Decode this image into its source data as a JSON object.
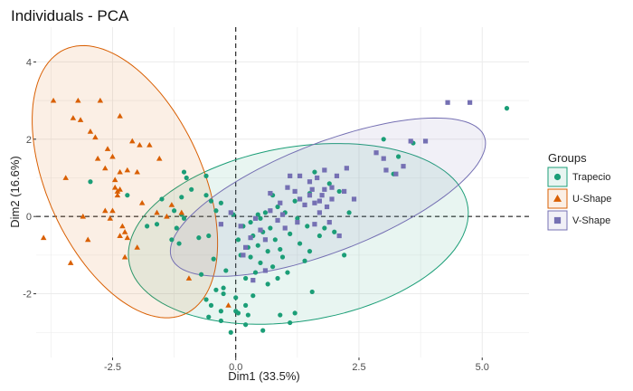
{
  "chart_data": {
    "type": "scatter",
    "title": "Individuals - PCA",
    "xlabel": "Dim1 (33.5%)",
    "ylabel": "Dim2 (16.6%)",
    "xlim": [
      -4.05,
      5.95
    ],
    "ylim": [
      -3.65,
      4.9
    ],
    "x_ticks": [
      -2.5,
      0,
      2.5,
      5
    ],
    "x_tick_labels": [
      "-2.5",
      "0.0",
      "2.5",
      "5.0"
    ],
    "y_ticks": [
      -2,
      0,
      2,
      4
    ],
    "y_tick_labels": [
      "-2",
      "0",
      "2",
      "4"
    ],
    "grid": true,
    "reference_lines": {
      "x": 0,
      "y": 0,
      "style": "dashed"
    },
    "legend": {
      "title": "Groups",
      "placement": "right"
    },
    "series": [
      {
        "name": "Trapecio",
        "color": "#1b9e77",
        "marker": "circle",
        "ellipse": {
          "cx": 1.27,
          "cy": -0.45,
          "rx": 3.52,
          "ry": 2.23,
          "angle_deg": 15
        },
        "points": [
          [
            5.5,
            2.8
          ],
          [
            3.3,
            1.55
          ],
          [
            3.2,
            1.1
          ],
          [
            3.6,
            1.9
          ],
          [
            3.0,
            2.0
          ],
          [
            -2.95,
            0.9
          ],
          [
            -1.0,
            1.0
          ],
          [
            -1.1,
            0.5
          ],
          [
            -0.9,
            0.7
          ],
          [
            -0.6,
            0.55
          ],
          [
            -0.5,
            0.4
          ],
          [
            -0.6,
            1.05
          ],
          [
            -1.5,
            0.45
          ],
          [
            -1.1,
            0.05
          ],
          [
            -1.6,
            -0.2
          ],
          [
            -1.2,
            -0.3
          ],
          [
            -1.3,
            -0.6
          ],
          [
            -1.15,
            -0.7
          ],
          [
            -0.55,
            -0.5
          ],
          [
            -0.75,
            -0.55
          ],
          [
            -0.45,
            -1.1
          ],
          [
            -0.2,
            -1.4
          ],
          [
            -0.25,
            -2.0
          ],
          [
            -0.4,
            -1.9
          ],
          [
            -0.5,
            -2.3
          ],
          [
            -0.6,
            -2.15
          ],
          [
            -0.55,
            -2.6
          ],
          [
            -0.3,
            -2.45
          ],
          [
            0.3,
            -0.15
          ],
          [
            0.5,
            -0.05
          ],
          [
            0.15,
            -0.25
          ],
          [
            0.35,
            -0.5
          ],
          [
            0.55,
            -0.4
          ],
          [
            0.7,
            -0.3
          ],
          [
            0.8,
            -0.6
          ],
          [
            0.25,
            -0.8
          ],
          [
            0.45,
            -0.75
          ],
          [
            0.65,
            -0.9
          ],
          [
            0.9,
            -0.85
          ],
          [
            0.3,
            -1.05
          ],
          [
            0.5,
            -1.2
          ],
          [
            0.75,
            -1.3
          ],
          [
            0.95,
            -1.05
          ],
          [
            1.1,
            -0.45
          ],
          [
            1.3,
            -0.7
          ],
          [
            1.5,
            -0.9
          ],
          [
            1.4,
            -1.15
          ],
          [
            1.7,
            -0.5
          ],
          [
            2.0,
            -0.4
          ],
          [
            1.8,
            -0.3
          ],
          [
            2.2,
            -1.0
          ],
          [
            0.2,
            -1.6
          ],
          [
            0.4,
            -1.45
          ],
          [
            0.65,
            -1.75
          ],
          [
            0.85,
            -1.6
          ],
          [
            0.2,
            -2.3
          ],
          [
            0.35,
            -2.05
          ],
          [
            0.0,
            -2.1
          ],
          [
            0.05,
            -2.5
          ],
          [
            0.25,
            -2.55
          ],
          [
            -0.3,
            -2.7
          ],
          [
            0.0,
            -2.45
          ],
          [
            0.2,
            -2.8
          ],
          [
            1.2,
            -2.5
          ],
          [
            1.55,
            -1.95
          ],
          [
            1.0,
            0.1
          ],
          [
            1.2,
            0.4
          ],
          [
            1.5,
            0.6
          ],
          [
            1.6,
            1.15
          ],
          [
            1.9,
            0.85
          ],
          [
            2.1,
            0.65
          ],
          [
            2.3,
            0.1
          ],
          [
            -0.05,
            0.05
          ],
          [
            0.05,
            -0.6
          ],
          [
            0.6,
            0.1
          ],
          [
            -2.2,
            0.55
          ],
          [
            -1.8,
            -0.25
          ],
          [
            -1.05,
            -0.05
          ],
          [
            -1.25,
            0.15
          ],
          [
            -1.05,
            1.15
          ],
          [
            -0.4,
            0.15
          ],
          [
            0.9,
            -2.55
          ],
          [
            1.05,
            -1.45
          ],
          [
            -0.1,
            -3.0
          ],
          [
            0.55,
            -2.95
          ],
          [
            1.1,
            -2.75
          ],
          [
            0.1,
            -1.0
          ],
          [
            1.45,
            -0.25
          ],
          [
            -0.3,
            0.35
          ],
          [
            0.85,
            0.25
          ],
          [
            1.25,
            -0.05
          ],
          [
            0.45,
            0.05
          ],
          [
            0.75,
            0.55
          ],
          [
            -0.7,
            -1.5
          ],
          [
            -0.25,
            -1.85
          ]
        ]
      },
      {
        "name": "U-Shape",
        "color": "#d95f02",
        "marker": "triangle",
        "ellipse": {
          "cx": -2.25,
          "cy": 0.9,
          "rx": 3.65,
          "ry": 1.62,
          "angle_deg": -73
        },
        "points": [
          [
            -3.7,
            3.0
          ],
          [
            -3.2,
            3.0
          ],
          [
            -2.75,
            3.0
          ],
          [
            -3.3,
            2.55
          ],
          [
            -3.15,
            2.5
          ],
          [
            -2.95,
            2.2
          ],
          [
            -2.35,
            2.6
          ],
          [
            -2.1,
            1.95
          ],
          [
            -1.95,
            1.85
          ],
          [
            -1.75,
            1.85
          ],
          [
            -1.55,
            1.5
          ],
          [
            -2.6,
            1.75
          ],
          [
            -2.8,
            1.5
          ],
          [
            -2.65,
            1.25
          ],
          [
            -2.35,
            1.15
          ],
          [
            -2.2,
            1.2
          ],
          [
            -2.45,
            0.75
          ],
          [
            -2.4,
            0.65
          ],
          [
            -2.35,
            0.7
          ],
          [
            -2.5,
            0.15
          ],
          [
            -2.65,
            0.15
          ],
          [
            -2.55,
            -0.05
          ],
          [
            -2.3,
            -0.25
          ],
          [
            -2.35,
            -0.5
          ],
          [
            -2.2,
            -0.55
          ],
          [
            -2.0,
            -0.8
          ],
          [
            -2.25,
            -1.05
          ],
          [
            -3.0,
            -0.6
          ],
          [
            -3.9,
            -0.55
          ],
          [
            -3.35,
            -1.2
          ],
          [
            -3.1,
            0.0
          ],
          [
            -3.45,
            1.0
          ],
          [
            -2.4,
            0.55
          ],
          [
            -1.9,
            0.35
          ],
          [
            -1.6,
            0.1
          ],
          [
            -1.4,
            0.0
          ],
          [
            -1.3,
            0.3
          ],
          [
            -2.25,
            -0.4
          ],
          [
            -1.1,
            0.1
          ],
          [
            -0.95,
            -1.6
          ],
          [
            -0.15,
            -2.3
          ],
          [
            -2.85,
            2.05
          ],
          [
            -2.5,
            1.55
          ],
          [
            -2.0,
            1.15
          ],
          [
            -2.45,
            0.95
          ]
        ]
      },
      {
        "name": "V-Shape",
        "color": "#7570b3",
        "marker": "square",
        "ellipse": {
          "cx": 1.87,
          "cy": 0.5,
          "rx": 3.55,
          "ry": 1.35,
          "angle_deg": 28
        },
        "points": [
          [
            4.3,
            2.95
          ],
          [
            3.85,
            1.95
          ],
          [
            3.55,
            1.95
          ],
          [
            3.4,
            1.3
          ],
          [
            3.25,
            1.1
          ],
          [
            3.05,
            1.2
          ],
          [
            2.85,
            1.65
          ],
          [
            2.25,
            1.25
          ],
          [
            2.05,
            1.05
          ],
          [
            1.8,
            1.2
          ],
          [
            1.65,
            1.0
          ],
          [
            1.5,
            0.9
          ],
          [
            1.3,
            1.05
          ],
          [
            1.1,
            1.05
          ],
          [
            1.2,
            0.65
          ],
          [
            1.5,
            0.55
          ],
          [
            1.7,
            0.4
          ],
          [
            1.85,
            0.25
          ],
          [
            1.95,
            0.45
          ],
          [
            2.2,
            0.65
          ],
          [
            1.8,
            0.7
          ],
          [
            1.6,
            0.35
          ],
          [
            1.4,
            0.3
          ],
          [
            0.9,
            0.35
          ],
          [
            0.7,
            0.15
          ],
          [
            0.85,
            -0.1
          ],
          [
            0.5,
            -0.35
          ],
          [
            0.3,
            -0.55
          ],
          [
            0.2,
            -0.8
          ],
          [
            0.15,
            -1.0
          ],
          [
            0.6,
            -0.6
          ],
          [
            1.0,
            -0.3
          ],
          [
            1.25,
            -0.15
          ],
          [
            1.9,
            -0.15
          ],
          [
            1.6,
            -0.2
          ],
          [
            0.95,
            0.05
          ],
          [
            0.4,
            -0.05
          ],
          [
            0.1,
            -0.25
          ],
          [
            -0.3,
            -0.2
          ],
          [
            -0.1,
            0.1
          ],
          [
            0.7,
            0.6
          ],
          [
            1.05,
            0.75
          ],
          [
            1.3,
            0.45
          ],
          [
            0.6,
            -1.4
          ],
          [
            0.35,
            -1.65
          ],
          [
            1.7,
            0.1
          ],
          [
            2.4,
            0.45
          ],
          [
            2.1,
            -0.5
          ],
          [
            3.0,
            1.5
          ],
          [
            4.75,
            2.95
          ],
          [
            1.95,
            0.75
          ],
          [
            1.55,
            0.7
          ],
          [
            1.75,
            0.55
          ]
        ]
      }
    ]
  }
}
